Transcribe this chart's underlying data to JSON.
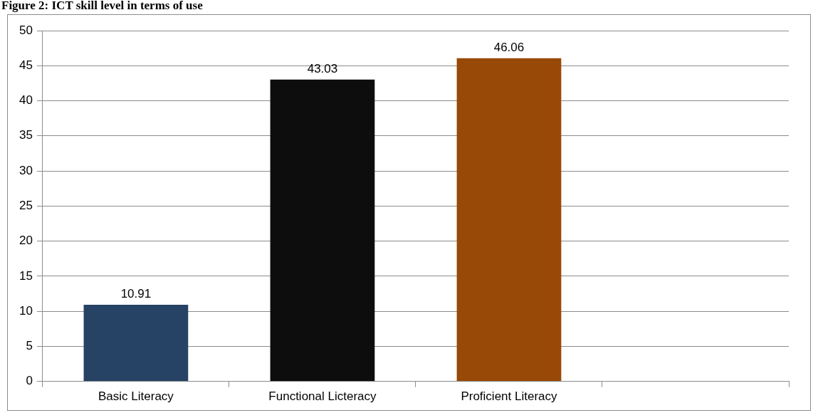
{
  "chart_data": {
    "type": "bar",
    "title": "Figure 2: ICT skill level in terms of use",
    "categories": [
      "Basic Literacy",
      "Functional Licteracy",
      "Proficient Literacy",
      null
    ],
    "colors": [
      "#264264",
      "#0d0d0d",
      "#984807",
      "#000000"
    ],
    "values": [
      10.91,
      43.03,
      46.06,
      null
    ],
    "ylim": [
      0,
      50
    ],
    "yticks": [
      0,
      5,
      10,
      15,
      20,
      25,
      30,
      35,
      40,
      45,
      50
    ],
    "grid": "y",
    "legend": false,
    "data_labels": true
  }
}
